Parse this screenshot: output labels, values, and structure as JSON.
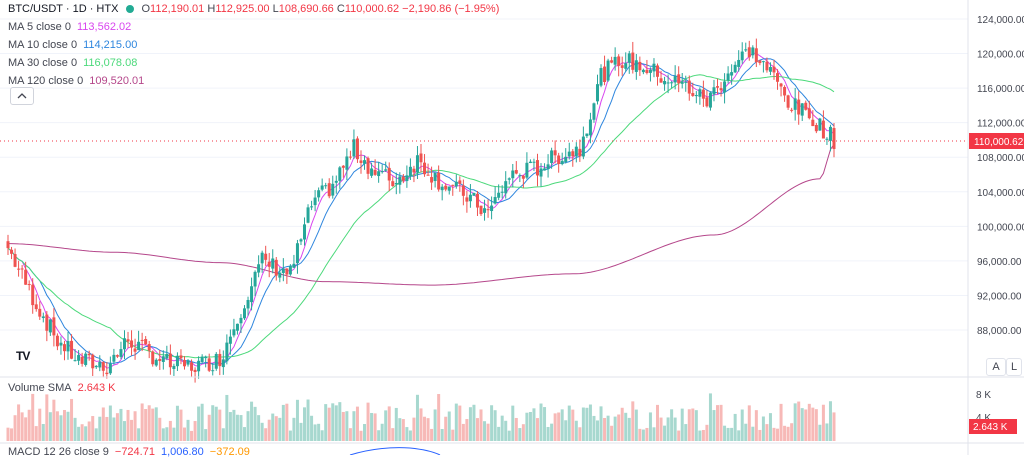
{
  "symbol": {
    "title": "BTC/USDT · 1D · HTX",
    "status_color": "#22ab94"
  },
  "ohlc": {
    "o_label": "O",
    "o_value": "112,190.01",
    "h_label": "H",
    "h_value": "112,925.00",
    "l_label": "L",
    "l_value": "108,690.66",
    "c_label": "C",
    "c_value": "110,000.62",
    "change": "−2,190.86 (−1.95%)"
  },
  "indicators": [
    {
      "label": "MA 5 close 0",
      "value": "113,562.02",
      "color": "#d946ef"
    },
    {
      "label": "MA 10 close 0",
      "value": "114,215.00",
      "color": "#2e86de"
    },
    {
      "label": "MA 30 close 0",
      "value": "116,078.08",
      "color": "#4cd97b"
    },
    {
      "label": "MA 120 close 0",
      "value": "109,520.01",
      "color": "#b5478b"
    }
  ],
  "collapse_icon": "chevron-up-icon",
  "logo_text": "TV",
  "price_axis": {
    "ticks": [
      "124,000.00",
      "120,000.00",
      "116,000.00",
      "112,000.00",
      "108,000.00",
      "104,000.00",
      "100,000.00",
      "96,000.00",
      "92,000.00",
      "88,000.00"
    ],
    "last_price": "110,000.62",
    "last_price_color": "#f23645",
    "auto_label": "A",
    "log_label": "L"
  },
  "volume": {
    "label": "Volume SMA",
    "value": "2.643 K",
    "ticks": [
      "8 K",
      "4 K"
    ],
    "badge": "2.643 K"
  },
  "macd": {
    "label": "MACD 12 26 close 9",
    "v1": "−724.71",
    "v2": "1,006.80",
    "v3": "−372.09"
  },
  "colors": {
    "up": "#26a69a",
    "down": "#ef5350",
    "vol_up": "#a7d8cf",
    "vol_down": "#f7b9b7",
    "grid": "#f0f3fa"
  }
}
